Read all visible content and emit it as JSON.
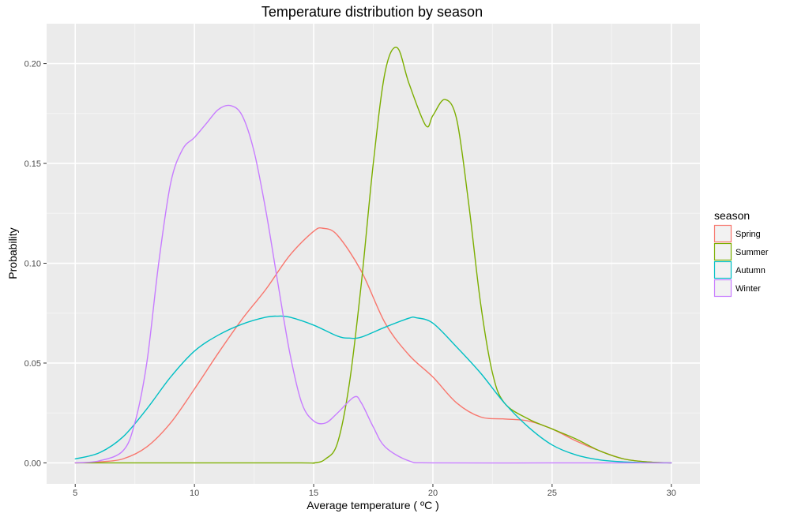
{
  "chart_data": {
    "type": "line",
    "title": "Temperature distribution by season",
    "xlabel": "Average temperature ( ºC )",
    "ylabel": "Probability",
    "xlim": [
      3.8,
      31.2
    ],
    "ylim": [
      -0.0105,
      0.22
    ],
    "x_ticks": [
      5,
      10,
      15,
      20,
      25,
      30
    ],
    "x_tick_labels": [
      "5",
      "10",
      "15",
      "20",
      "25",
      "30"
    ],
    "y_ticks": [
      0,
      0.05,
      0.1,
      0.15,
      0.2
    ],
    "y_tick_labels": [
      "0.00",
      "0.05",
      "0.10",
      "0.15",
      "0.20"
    ],
    "grid": true,
    "legend": {
      "title": "season",
      "position": "right"
    },
    "series": [
      {
        "name": "Spring",
        "color": "#F8766D",
        "x": [
          5,
          6,
          7,
          8,
          9,
          10,
          11,
          12,
          13,
          14,
          15,
          15.4,
          16,
          17,
          18,
          19,
          20,
          21,
          22,
          23,
          24,
          25,
          26,
          27,
          28,
          29,
          30
        ],
        "y": [
          0.0,
          0.0005,
          0.002,
          0.008,
          0.02,
          0.037,
          0.055,
          0.072,
          0.087,
          0.104,
          0.116,
          0.1175,
          0.114,
          0.096,
          0.07,
          0.054,
          0.043,
          0.03,
          0.023,
          0.022,
          0.021,
          0.017,
          0.011,
          0.006,
          0.002,
          0.0005,
          0.0
        ]
      },
      {
        "name": "Summer",
        "color": "#7CAE00",
        "x": [
          5,
          14,
          15,
          15.5,
          16,
          16.5,
          17,
          17.5,
          18,
          18.5,
          19,
          19.7,
          20,
          20.5,
          21,
          21.5,
          22,
          22.5,
          23,
          24,
          25,
          26,
          27,
          28,
          29,
          30
        ],
        "y": [
          0.0,
          0.0,
          0.0,
          0.002,
          0.01,
          0.04,
          0.09,
          0.15,
          0.196,
          0.208,
          0.19,
          0.169,
          0.174,
          0.182,
          0.172,
          0.13,
          0.08,
          0.045,
          0.03,
          0.022,
          0.017,
          0.012,
          0.006,
          0.002,
          0.0005,
          0.0
        ]
      },
      {
        "name": "Autumn",
        "color": "#00BFC4",
        "x": [
          5,
          6,
          7,
          8,
          9,
          10,
          11,
          12,
          13,
          13.5,
          14,
          15,
          16,
          16.5,
          17,
          18,
          19,
          19.3,
          20,
          21,
          22,
          23,
          24,
          25,
          26,
          27,
          28,
          29,
          30
        ],
        "y": [
          0.002,
          0.005,
          0.013,
          0.027,
          0.043,
          0.056,
          0.064,
          0.0695,
          0.073,
          0.0735,
          0.073,
          0.069,
          0.0635,
          0.0625,
          0.063,
          0.068,
          0.0725,
          0.0727,
          0.07,
          0.058,
          0.045,
          0.03,
          0.018,
          0.009,
          0.004,
          0.0015,
          0.0005,
          0.0001,
          0.0
        ]
      },
      {
        "name": "Winter",
        "color": "#C77CFF",
        "x": [
          5,
          6,
          7,
          7.5,
          8,
          8.5,
          9,
          9.5,
          10,
          10.5,
          11,
          11.5,
          12,
          12.5,
          13,
          13.5,
          14,
          14.5,
          15,
          15.5,
          16,
          16.7,
          17,
          17.5,
          18,
          19,
          20,
          25,
          30
        ],
        "y": [
          0.0,
          0.001,
          0.006,
          0.02,
          0.05,
          0.1,
          0.14,
          0.157,
          0.163,
          0.17,
          0.177,
          0.179,
          0.174,
          0.156,
          0.126,
          0.09,
          0.055,
          0.03,
          0.021,
          0.02,
          0.025,
          0.033,
          0.03,
          0.018,
          0.008,
          0.001,
          0.0,
          0.0,
          0.0
        ]
      }
    ]
  }
}
